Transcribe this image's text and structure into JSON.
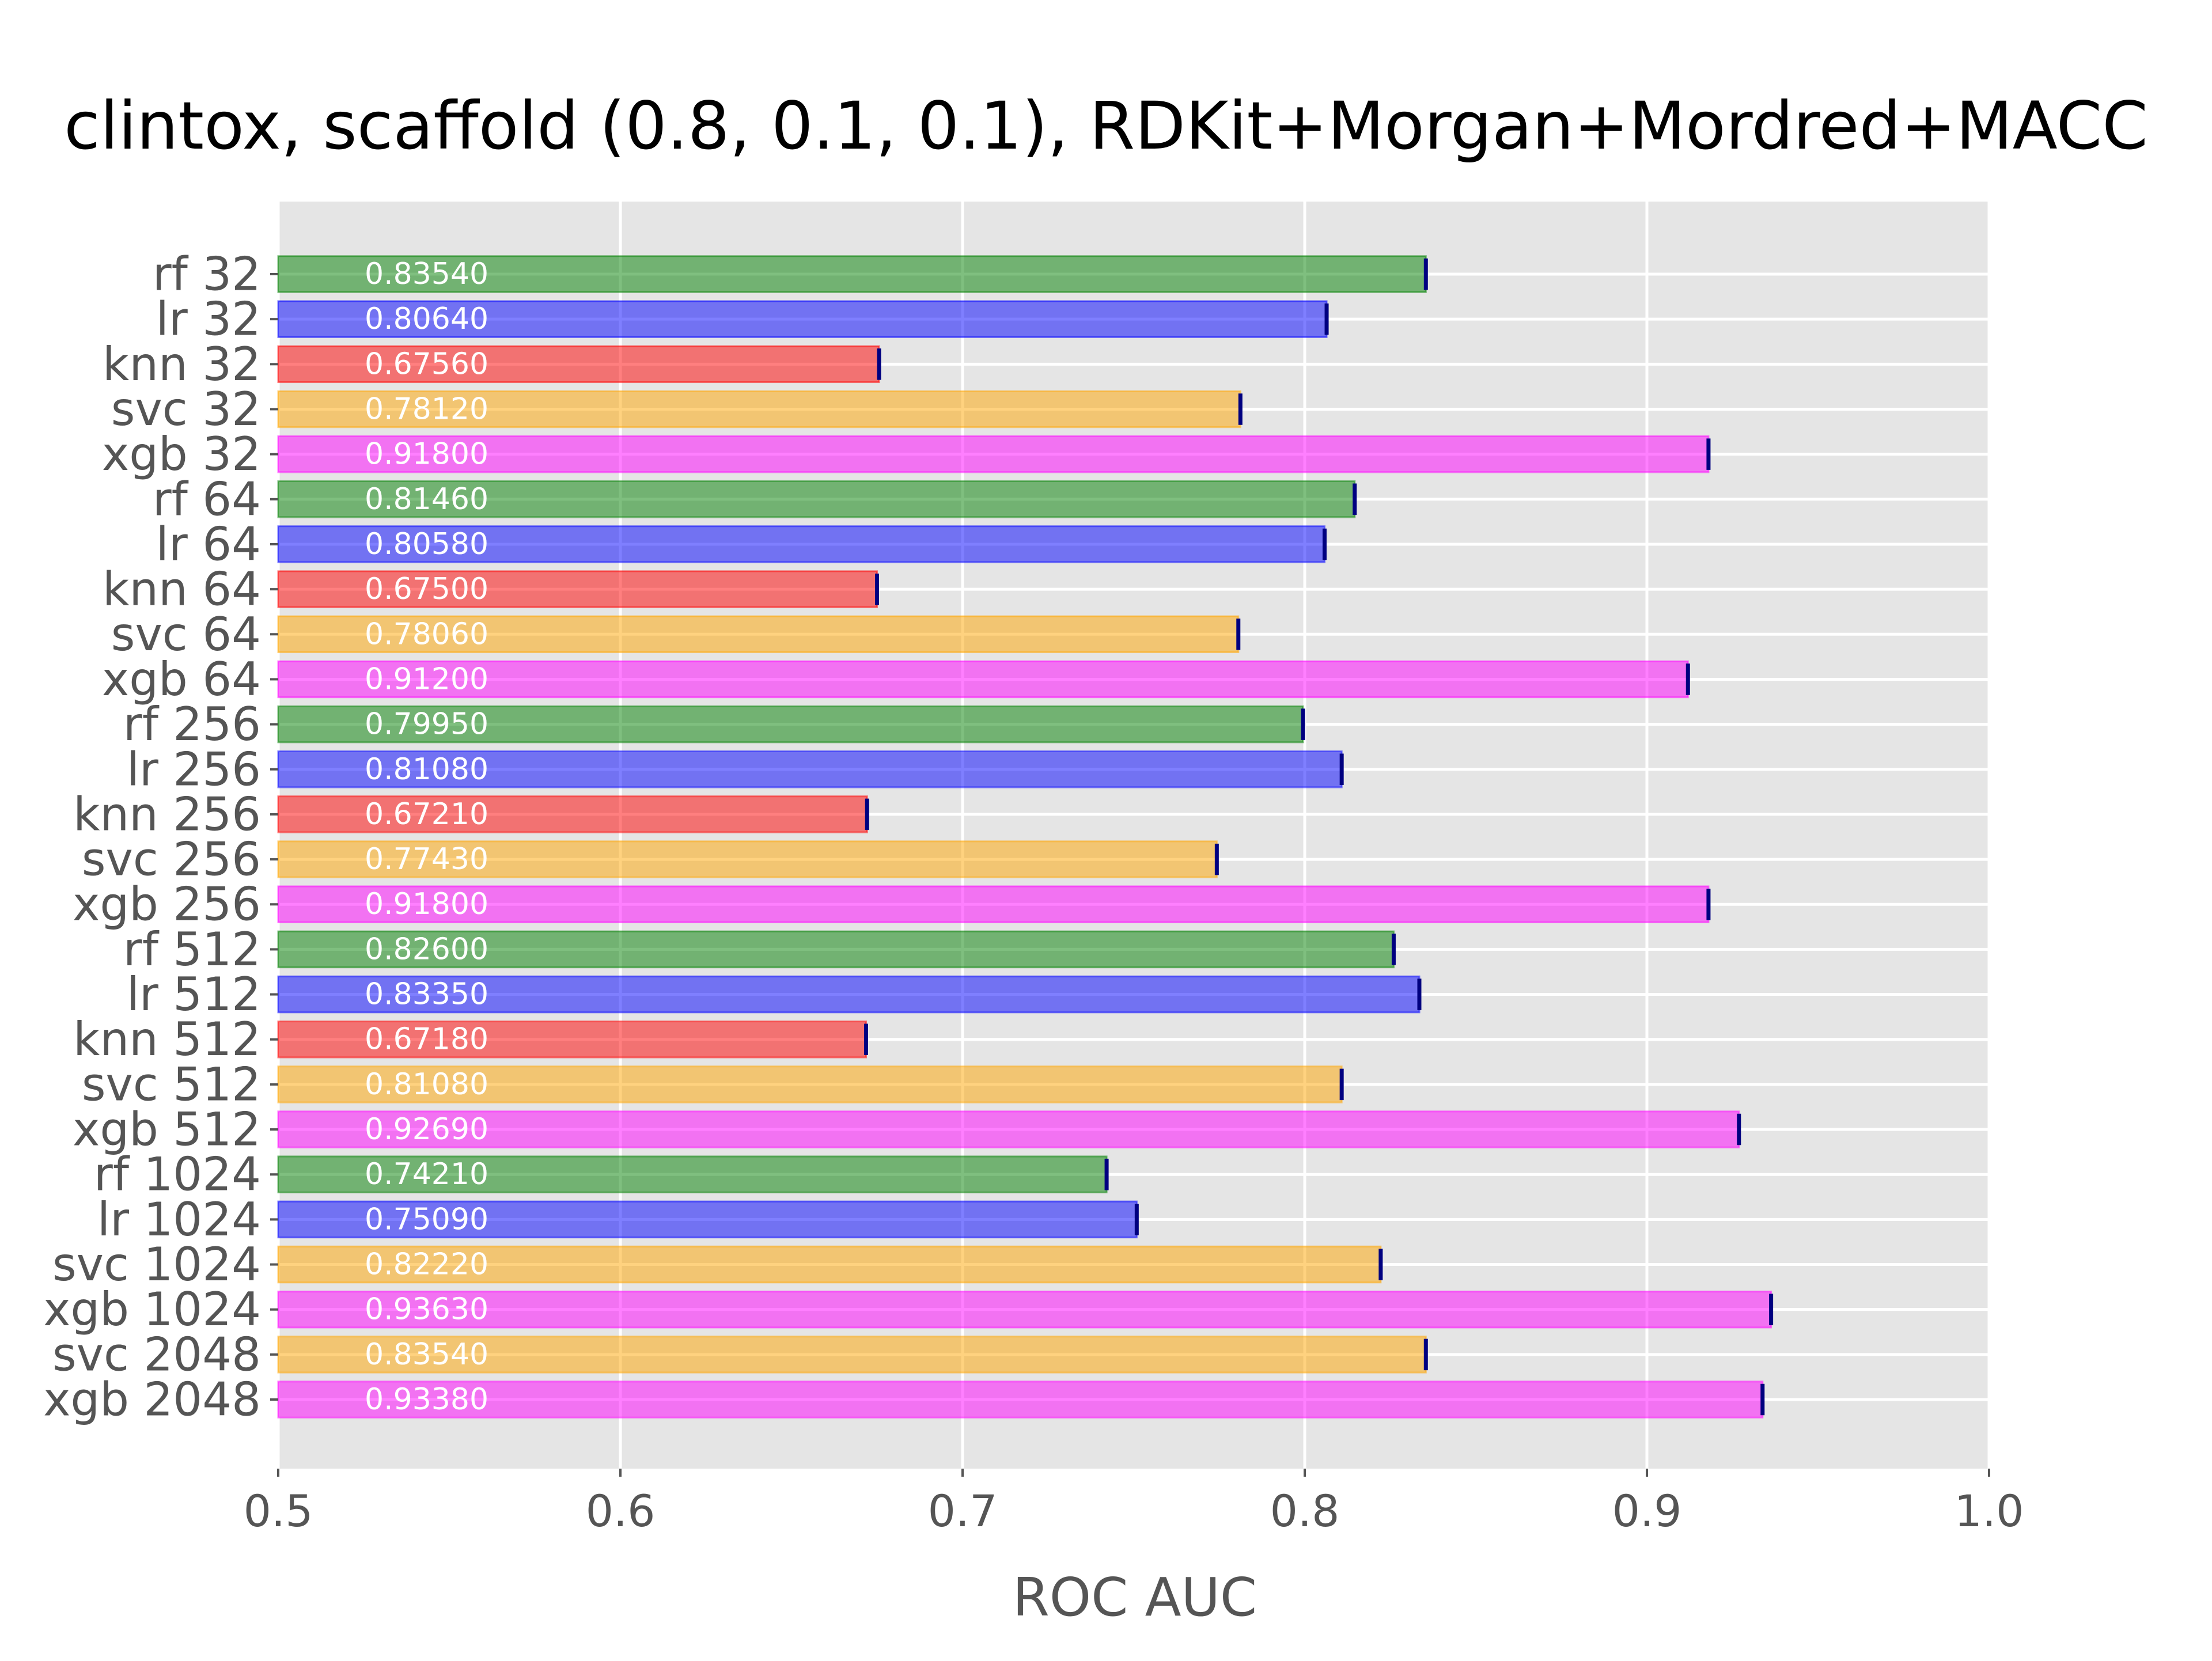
{
  "chart_data": {
    "type": "bar",
    "orientation": "horizontal",
    "title": "clintox, scaffold (0.8, 0.1, 0.1), RDKit+Morgan+Mordred+MACC",
    "xlabel": "ROC AUC",
    "ylabel": "",
    "xlim": [
      0.5,
      1.0
    ],
    "xticks": [
      0.5,
      0.6,
      0.7,
      0.8,
      0.9,
      1.0
    ],
    "xtick_labels": [
      "0.5",
      "0.6",
      "0.7",
      "0.8",
      "0.9",
      "1.0"
    ],
    "grid": true,
    "categories": [
      "rf 32",
      "lr 32",
      "knn 32",
      "svc 32",
      "xgb 32",
      "rf 64",
      "lr 64",
      "knn 64",
      "svc 64",
      "xgb 64",
      "rf 256",
      "lr 256",
      "knn 256",
      "svc 256",
      "xgb 256",
      "rf 512",
      "lr 512",
      "knn 512",
      "svc 512",
      "xgb 512",
      "rf 1024",
      "lr 1024",
      "svc 1024",
      "xgb 1024",
      "svc 2048",
      "xgb 2048"
    ],
    "values": [
      0.8354,
      0.8064,
      0.6756,
      0.7812,
      0.918,
      0.8146,
      0.8058,
      0.675,
      0.7806,
      0.912,
      0.7995,
      0.8108,
      0.6721,
      0.7743,
      0.918,
      0.826,
      0.8335,
      0.6718,
      0.8108,
      0.9269,
      0.7421,
      0.7509,
      0.8222,
      0.9363,
      0.8354,
      0.9338
    ],
    "value_labels": [
      "0.83540",
      "0.80640",
      "0.67560",
      "0.78120",
      "0.91800",
      "0.81460",
      "0.80580",
      "0.67500",
      "0.78060",
      "0.91200",
      "0.79950",
      "0.81080",
      "0.67210",
      "0.77430",
      "0.91800",
      "0.82600",
      "0.83350",
      "0.67180",
      "0.81080",
      "0.92690",
      "0.74210",
      "0.75090",
      "0.82220",
      "0.93630",
      "0.83540",
      "0.93380"
    ],
    "bar_colors": [
      "#008000",
      "#0000ff",
      "#ff0000",
      "#ffa500",
      "#ff00ff",
      "#008000",
      "#0000ff",
      "#ff0000",
      "#ffa500",
      "#ff00ff",
      "#008000",
      "#0000ff",
      "#ff0000",
      "#ffa500",
      "#ff00ff",
      "#008000",
      "#0000ff",
      "#ff0000",
      "#ffa500",
      "#ff00ff",
      "#008000",
      "#0000ff",
      "#ffa500",
      "#ff00ff",
      "#ffa500",
      "#ff00ff"
    ],
    "colors": {
      "background": "#e5e5e5",
      "grid": "#ffffff",
      "error_bar": "#000080",
      "text": "#555555",
      "title": "#000000",
      "value_label": "#ffffff"
    }
  }
}
